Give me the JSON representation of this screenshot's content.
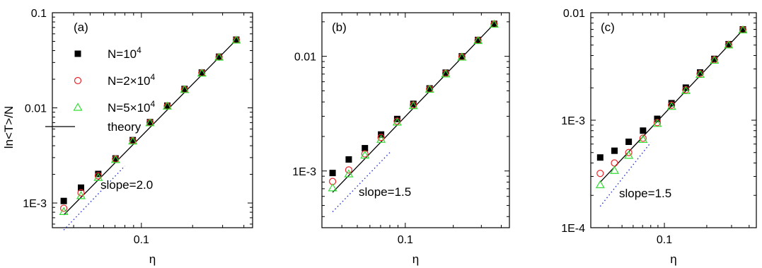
{
  "figure": {
    "ylabel": "ln<T>/N",
    "xlabel": "η"
  },
  "legend": {
    "items": [
      {
        "label_base": "N=10",
        "label_sup": "4",
        "marker": "square",
        "color": "#000000"
      },
      {
        "label_base": "N=2×10",
        "label_sup": "4",
        "marker": "circle",
        "color": "#e8262a"
      },
      {
        "label_base": "N=5×10",
        "label_sup": "4",
        "marker": "triangle",
        "color": "#33dd33"
      },
      {
        "label_base": "theory",
        "label_sup": "",
        "marker": "line",
        "color": "#000000"
      }
    ]
  },
  "chart_data": [
    {
      "type": "scatter",
      "panel_label": "(a)",
      "xlabel": "η",
      "ylabel": "ln<T>/N",
      "xscale": "log",
      "yscale": "log",
      "xlim": [
        0.03,
        0.45
      ],
      "ylim": [
        0.00055,
        0.1
      ],
      "xticks": [
        {
          "value": 0.1,
          "label": "0.1"
        }
      ],
      "yticks": [
        {
          "value": 0.001,
          "label": "1E-3"
        },
        {
          "value": 0.01,
          "label": "0.01"
        },
        {
          "value": 0.1,
          "label": "0.1"
        }
      ],
      "x": [
        0.035,
        0.0442,
        0.0558,
        0.0705,
        0.089,
        0.1124,
        0.142,
        0.1793,
        0.2264,
        0.2859,
        0.361
      ],
      "series": [
        {
          "name": "N=10^4",
          "marker": "square",
          "color": "#000000",
          "values": [
            0.00105,
            0.00145,
            0.00202,
            0.00294,
            0.00458,
            0.00708,
            0.01055,
            0.0158,
            0.0235,
            0.0345,
            0.0521
          ]
        },
        {
          "name": "N=2×10^4",
          "marker": "circle",
          "color": "#e8262a",
          "values": [
            0.00088,
            0.00128,
            0.00193,
            0.0029,
            0.00452,
            0.00702,
            0.01045,
            0.0156,
            0.0233,
            0.0342,
            0.0517
          ]
        },
        {
          "name": "N=5×10^4",
          "marker": "triangle",
          "color": "#33dd33",
          "values": [
            0.00081,
            0.00119,
            0.00185,
            0.00285,
            0.00446,
            0.00695,
            0.0104,
            0.0155,
            0.0231,
            0.034,
            0.0514
          ]
        }
      ],
      "theory": {
        "name": "theory",
        "style": "solid",
        "x": [
          0.035,
          0.361
        ],
        "y": [
          0.00075,
          0.0518
        ]
      },
      "slope_guide": {
        "style": "dotted",
        "color": "#2233cc",
        "x": [
          0.035,
          0.08
        ],
        "y": [
          0.00052,
          0.00245
        ]
      },
      "annotation": "slope=2.0"
    },
    {
      "type": "scatter",
      "panel_label": "(b)",
      "xlabel": "η",
      "xscale": "log",
      "yscale": "log",
      "xlim": [
        0.03,
        0.45
      ],
      "ylim": [
        0.00032,
        0.024
      ],
      "xticks": [
        {
          "value": 0.1,
          "label": "0.1"
        }
      ],
      "yticks": [
        {
          "value": 0.001,
          "label": "1E-3"
        },
        {
          "value": 0.01,
          "label": "0.01"
        }
      ],
      "x": [
        0.035,
        0.0442,
        0.0558,
        0.0705,
        0.089,
        0.1124,
        0.142,
        0.1793,
        0.2264,
        0.2859,
        0.361
      ],
      "series": [
        {
          "name": "N=10^4",
          "marker": "square",
          "color": "#000000",
          "values": [
            0.00096,
            0.00126,
            0.00158,
            0.00208,
            0.00284,
            0.00385,
            0.00525,
            0.0072,
            0.01,
            0.0139,
            0.0192
          ]
        },
        {
          "name": "N=2×10^4",
          "marker": "circle",
          "color": "#e8262a",
          "values": [
            0.00081,
            0.00102,
            0.00141,
            0.00196,
            0.00272,
            0.00376,
            0.00518,
            0.0071,
            0.0099,
            0.0138,
            0.0191
          ]
        },
        {
          "name": "N=5×10^4",
          "marker": "triangle",
          "color": "#33dd33",
          "values": [
            0.00071,
            0.00094,
            0.00137,
            0.00188,
            0.00266,
            0.0037,
            0.00514,
            0.007,
            0.0098,
            0.0137,
            0.019
          ]
        }
      ],
      "theory": {
        "name": "theory",
        "style": "solid",
        "x": [
          0.035,
          0.361
        ],
        "y": [
          0.00065,
          0.0192
        ]
      },
      "slope_guide": {
        "style": "dotted",
        "color": "#2233cc",
        "x": [
          0.035,
          0.08
        ],
        "y": [
          0.00044,
          0.00145
        ]
      },
      "annotation": "slope=1.5"
    },
    {
      "type": "scatter",
      "panel_label": "(c)",
      "xlabel": "η",
      "xscale": "log",
      "yscale": "log",
      "xlim": [
        0.03,
        0.45
      ],
      "ylim": [
        0.0001,
        0.01
      ],
      "xticks": [
        {
          "value": 0.1,
          "label": "0.1"
        }
      ],
      "yticks": [
        {
          "value": 0.0001,
          "label": "1E-4"
        },
        {
          "value": 0.001,
          "label": "1E-3"
        },
        {
          "value": 0.01,
          "label": "0.01"
        }
      ],
      "x": [
        0.035,
        0.0442,
        0.0558,
        0.0705,
        0.089,
        0.1124,
        0.142,
        0.1793,
        0.2264,
        0.2859,
        0.361
      ],
      "series": [
        {
          "name": "N=10^4",
          "marker": "square",
          "color": "#000000",
          "values": [
            0.00045,
            0.00052,
            0.00063,
            0.0008,
            0.00103,
            0.00144,
            0.00201,
            0.00278,
            0.00372,
            0.0051,
            0.007
          ]
        },
        {
          "name": "N=2×10^4",
          "marker": "circle",
          "color": "#e8262a",
          "values": [
            0.00032,
            0.0004,
            0.0005,
            0.00068,
            0.00095,
            0.00138,
            0.00192,
            0.00271,
            0.00365,
            0.00505,
            0.00695
          ]
        },
        {
          "name": "N=5×10^4",
          "marker": "triangle",
          "color": "#33dd33",
          "values": [
            0.00025,
            0.00034,
            0.00047,
            0.00066,
            0.00093,
            0.00134,
            0.00188,
            0.00266,
            0.0036,
            0.005,
            0.0069
          ]
        }
      ],
      "theory": {
        "name": "theory",
        "style": "solid",
        "x": [
          0.035,
          0.361
        ],
        "y": [
          0.000265,
          0.0069
        ]
      },
      "slope_guide": {
        "style": "dotted",
        "color": "#2233cc",
        "x": [
          0.035,
          0.08
        ],
        "y": [
          0.000158,
          0.00062
        ]
      },
      "annotation": "slope=1.5"
    }
  ]
}
